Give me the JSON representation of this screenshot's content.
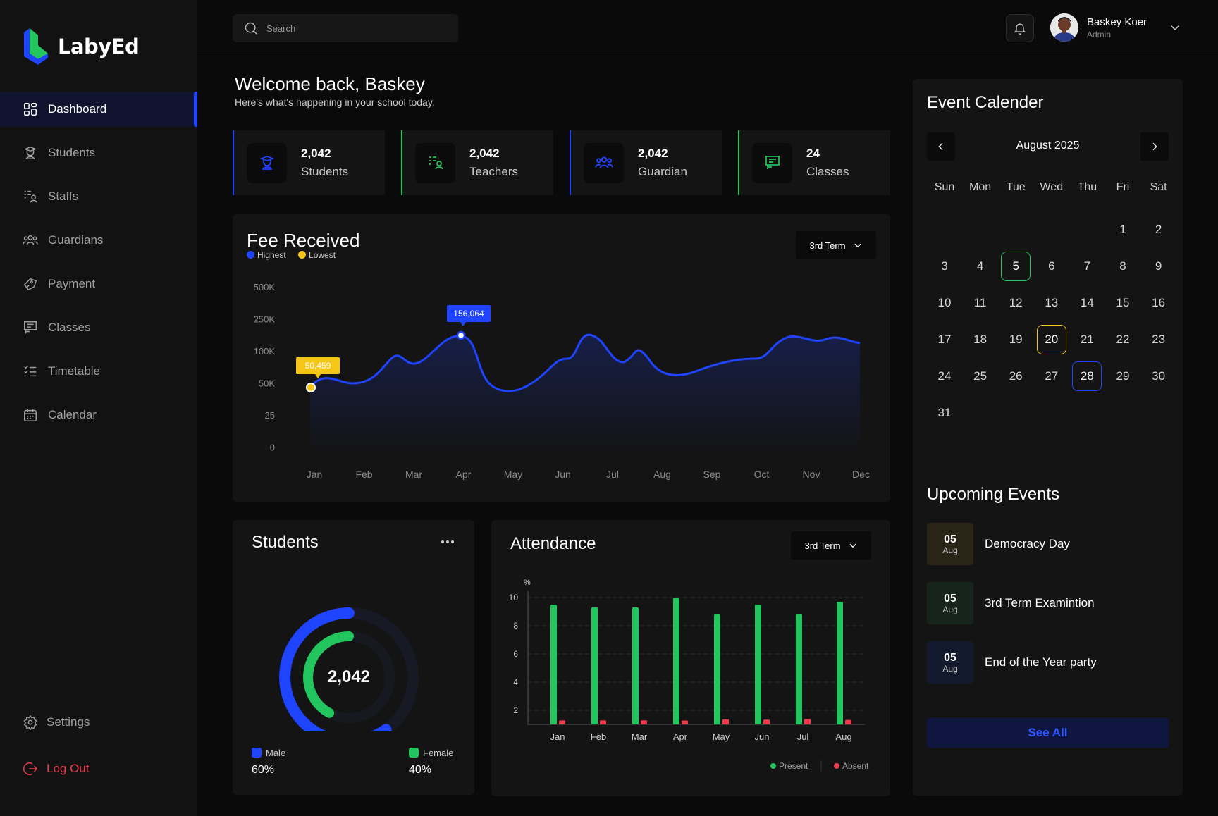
{
  "app": {
    "name": "LabyEd"
  },
  "sidebar": {
    "items": [
      {
        "label": "Dashboard",
        "icon": "dashboard-icon",
        "active": true
      },
      {
        "label": "Students",
        "icon": "student-icon"
      },
      {
        "label": "Staffs",
        "icon": "staffs-icon"
      },
      {
        "label": "Guardians",
        "icon": "guardians-icon"
      },
      {
        "label": "Payment",
        "icon": "payment-icon"
      },
      {
        "label": "Classes",
        "icon": "classes-icon"
      },
      {
        "label": "Timetable",
        "icon": "timetable-icon"
      },
      {
        "label": "Calendar",
        "icon": "calendar-icon"
      }
    ],
    "settings_label": "Settings",
    "logout_label": "Log Out"
  },
  "header": {
    "search_placeholder": "Search",
    "user": {
      "name": "Baskey Koer",
      "role": "Admin"
    }
  },
  "welcome": {
    "title": "Welcome back, Baskey",
    "subtitle": "Here's what's happening in your school today."
  },
  "stats": [
    {
      "value": "2,042",
      "label": "Students",
      "icon": "student-icon",
      "accent": "#1e44ff"
    },
    {
      "value": "2,042",
      "label": "Teachers",
      "icon": "teacher-icon",
      "accent": "#22c55e"
    },
    {
      "value": "2,042",
      "label": "Guardian",
      "icon": "guardians-icon",
      "accent": "#1e44ff"
    },
    {
      "value": "24",
      "label": "Classes",
      "icon": "classes-icon",
      "accent": "#22c55e"
    }
  ],
  "fee": {
    "title": "Fee Received",
    "legend_highest": "Highest",
    "legend_lowest": "Lowest",
    "dropdown": "3rd Term",
    "chart_data": {
      "type": "area",
      "categories": [
        "Jan",
        "Feb",
        "Mar",
        "Apr",
        "May",
        "Jun",
        "Jul",
        "Aug",
        "Sep",
        "Oct",
        "Nov",
        "Dec"
      ],
      "y_ticks": [
        "500K",
        "250K",
        "100K",
        "50K",
        "25",
        "0"
      ],
      "highest": {
        "label": "156,064",
        "month": "Apr",
        "color": "#1e44ff"
      },
      "lowest": {
        "label": "50,459",
        "month": "Jan",
        "color": "#f5c518"
      },
      "line_color": "#1e44ff"
    }
  },
  "students": {
    "title": "Students",
    "total": "2,042",
    "male_label": "Male",
    "male_value": "60%",
    "female_label": "Female",
    "female_value": "40%",
    "male_color": "#1e44ff",
    "female_color": "#22c55e",
    "chart_data": {
      "type": "pie",
      "categories": [
        "Male",
        "Female"
      ],
      "values": [
        60,
        40
      ]
    }
  },
  "attendance": {
    "title": "Attendance",
    "dropdown": "3rd Term",
    "unit": "%",
    "chart_data": {
      "type": "bar",
      "categories": [
        "Jan",
        "Feb",
        "Mar",
        "Apr",
        "May",
        "Jun",
        "Jul",
        "Aug"
      ],
      "series": [
        {
          "name": "Present",
          "color": "#22c55e",
          "values": [
            9.5,
            9.3,
            9.3,
            10,
            8.8,
            9.5,
            8.8,
            9.7
          ]
        },
        {
          "name": "Absent",
          "color": "#ef3b4d",
          "values": [
            0.9,
            1.0,
            1.0,
            0.8,
            1.8,
            1.5,
            2.0,
            1.3
          ]
        }
      ],
      "y_ticks": [
        2,
        4,
        6,
        8,
        10
      ],
      "ylim": [
        1,
        10
      ]
    }
  },
  "calendar": {
    "title": "Event Calender",
    "month_label": "August 2025",
    "weekdays": [
      "Sun",
      "Mon",
      "Tue",
      "Wed",
      "Thu",
      "Fri",
      "Sat"
    ],
    "days": [
      "",
      "",
      "",
      "",
      "",
      "1",
      "2",
      "3",
      "4",
      "5",
      "6",
      "7",
      "8",
      "9",
      "10",
      "11",
      "12",
      "13",
      "14",
      "15",
      "16",
      "17",
      "18",
      "19",
      "20",
      "21",
      "22",
      "23",
      "24",
      "25",
      "26",
      "27",
      "28",
      "29",
      "30",
      "31"
    ],
    "highlight_green": "5",
    "highlight_yellow": "20",
    "highlight_blue": "28"
  },
  "events": {
    "title": "Upcoming Events",
    "items": [
      {
        "day": "05",
        "month": "Aug",
        "title": "Democracy Day",
        "bg": "#2a2417"
      },
      {
        "day": "05",
        "month": "Aug",
        "title": "3rd Term Examintion",
        "bg": "#16241b"
      },
      {
        "day": "05",
        "month": "Aug",
        "title": "End of the Year party",
        "bg": "#141a2e"
      }
    ],
    "see_all_label": "See All"
  }
}
